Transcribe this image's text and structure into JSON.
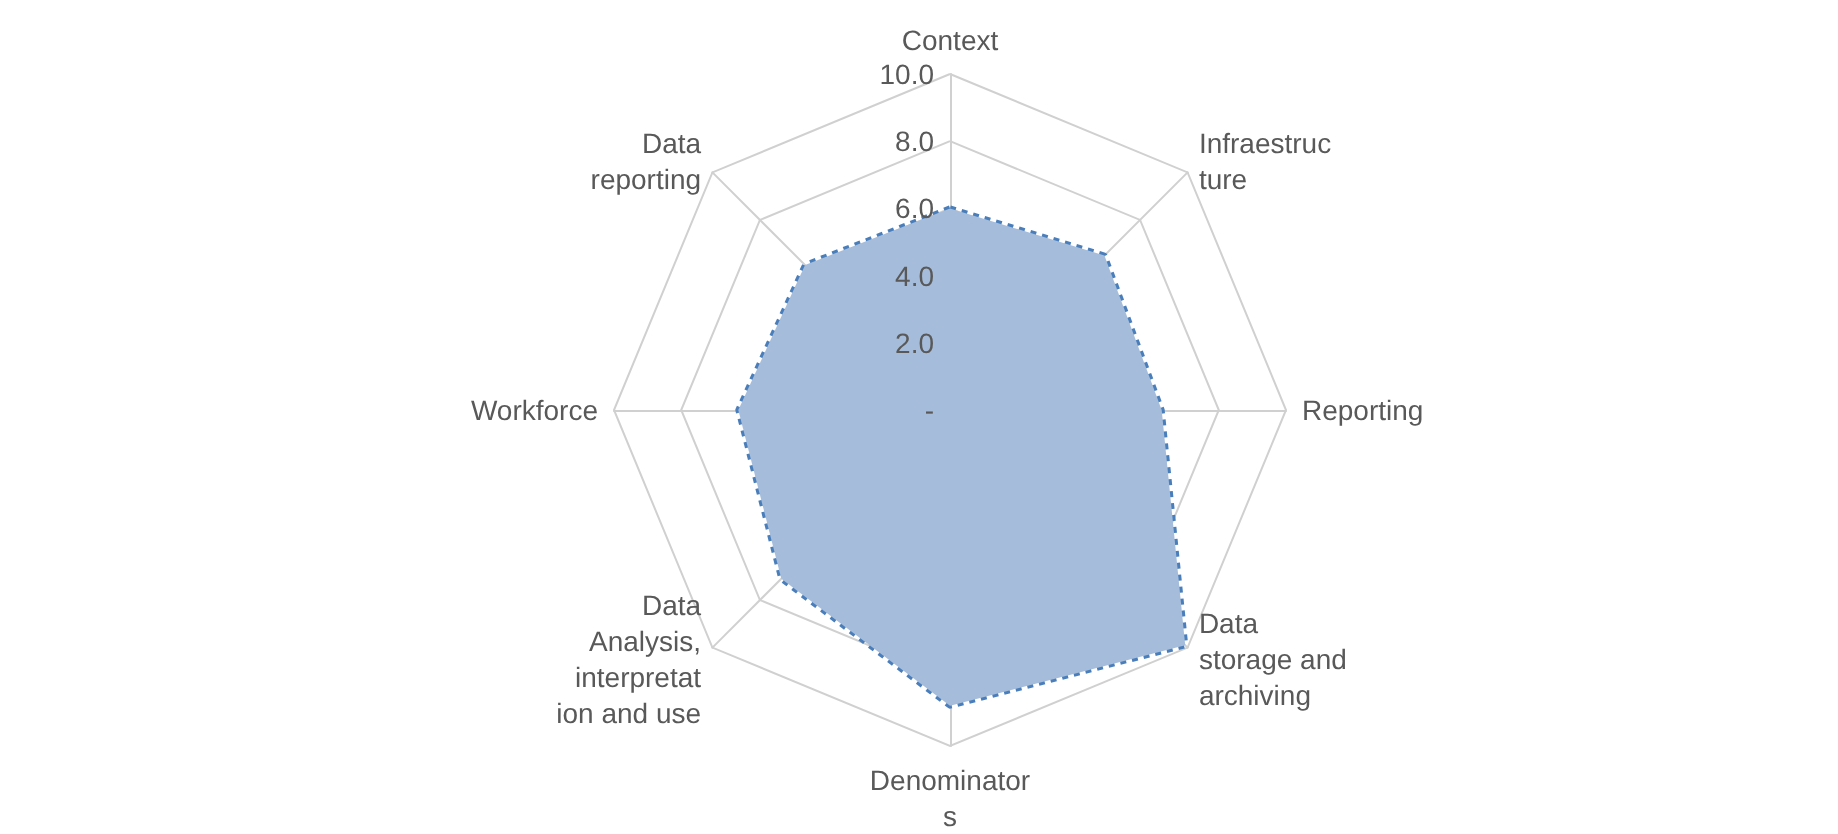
{
  "chart_data": {
    "type": "radar",
    "categories": [
      "Context",
      "Infraestructure",
      "Reporting",
      "Data storage and archiving",
      "Denominators",
      "Data Analysis, interpretation and use",
      "Workforce",
      "Data reporting"
    ],
    "series": [
      {
        "color": "#4a7ebb",
        "values": [
          6.0,
          6.5,
          6.3,
          9.9,
          8.8,
          7.1,
          6.3,
          6.1
        ]
      }
    ],
    "ylim": [
      0,
      10
    ],
    "yticks": [
      {
        "value": 0,
        "label": "-"
      },
      {
        "value": 2,
        "label": "2.0"
      },
      {
        "value": 4,
        "label": "4.0"
      },
      {
        "value": 6,
        "label": "6.0"
      },
      {
        "value": 8,
        "label": "8.0"
      },
      {
        "value": 10,
        "label": "10.0"
      }
    ],
    "line_style": "dotted",
    "marker": "none",
    "grid": true
  }
}
